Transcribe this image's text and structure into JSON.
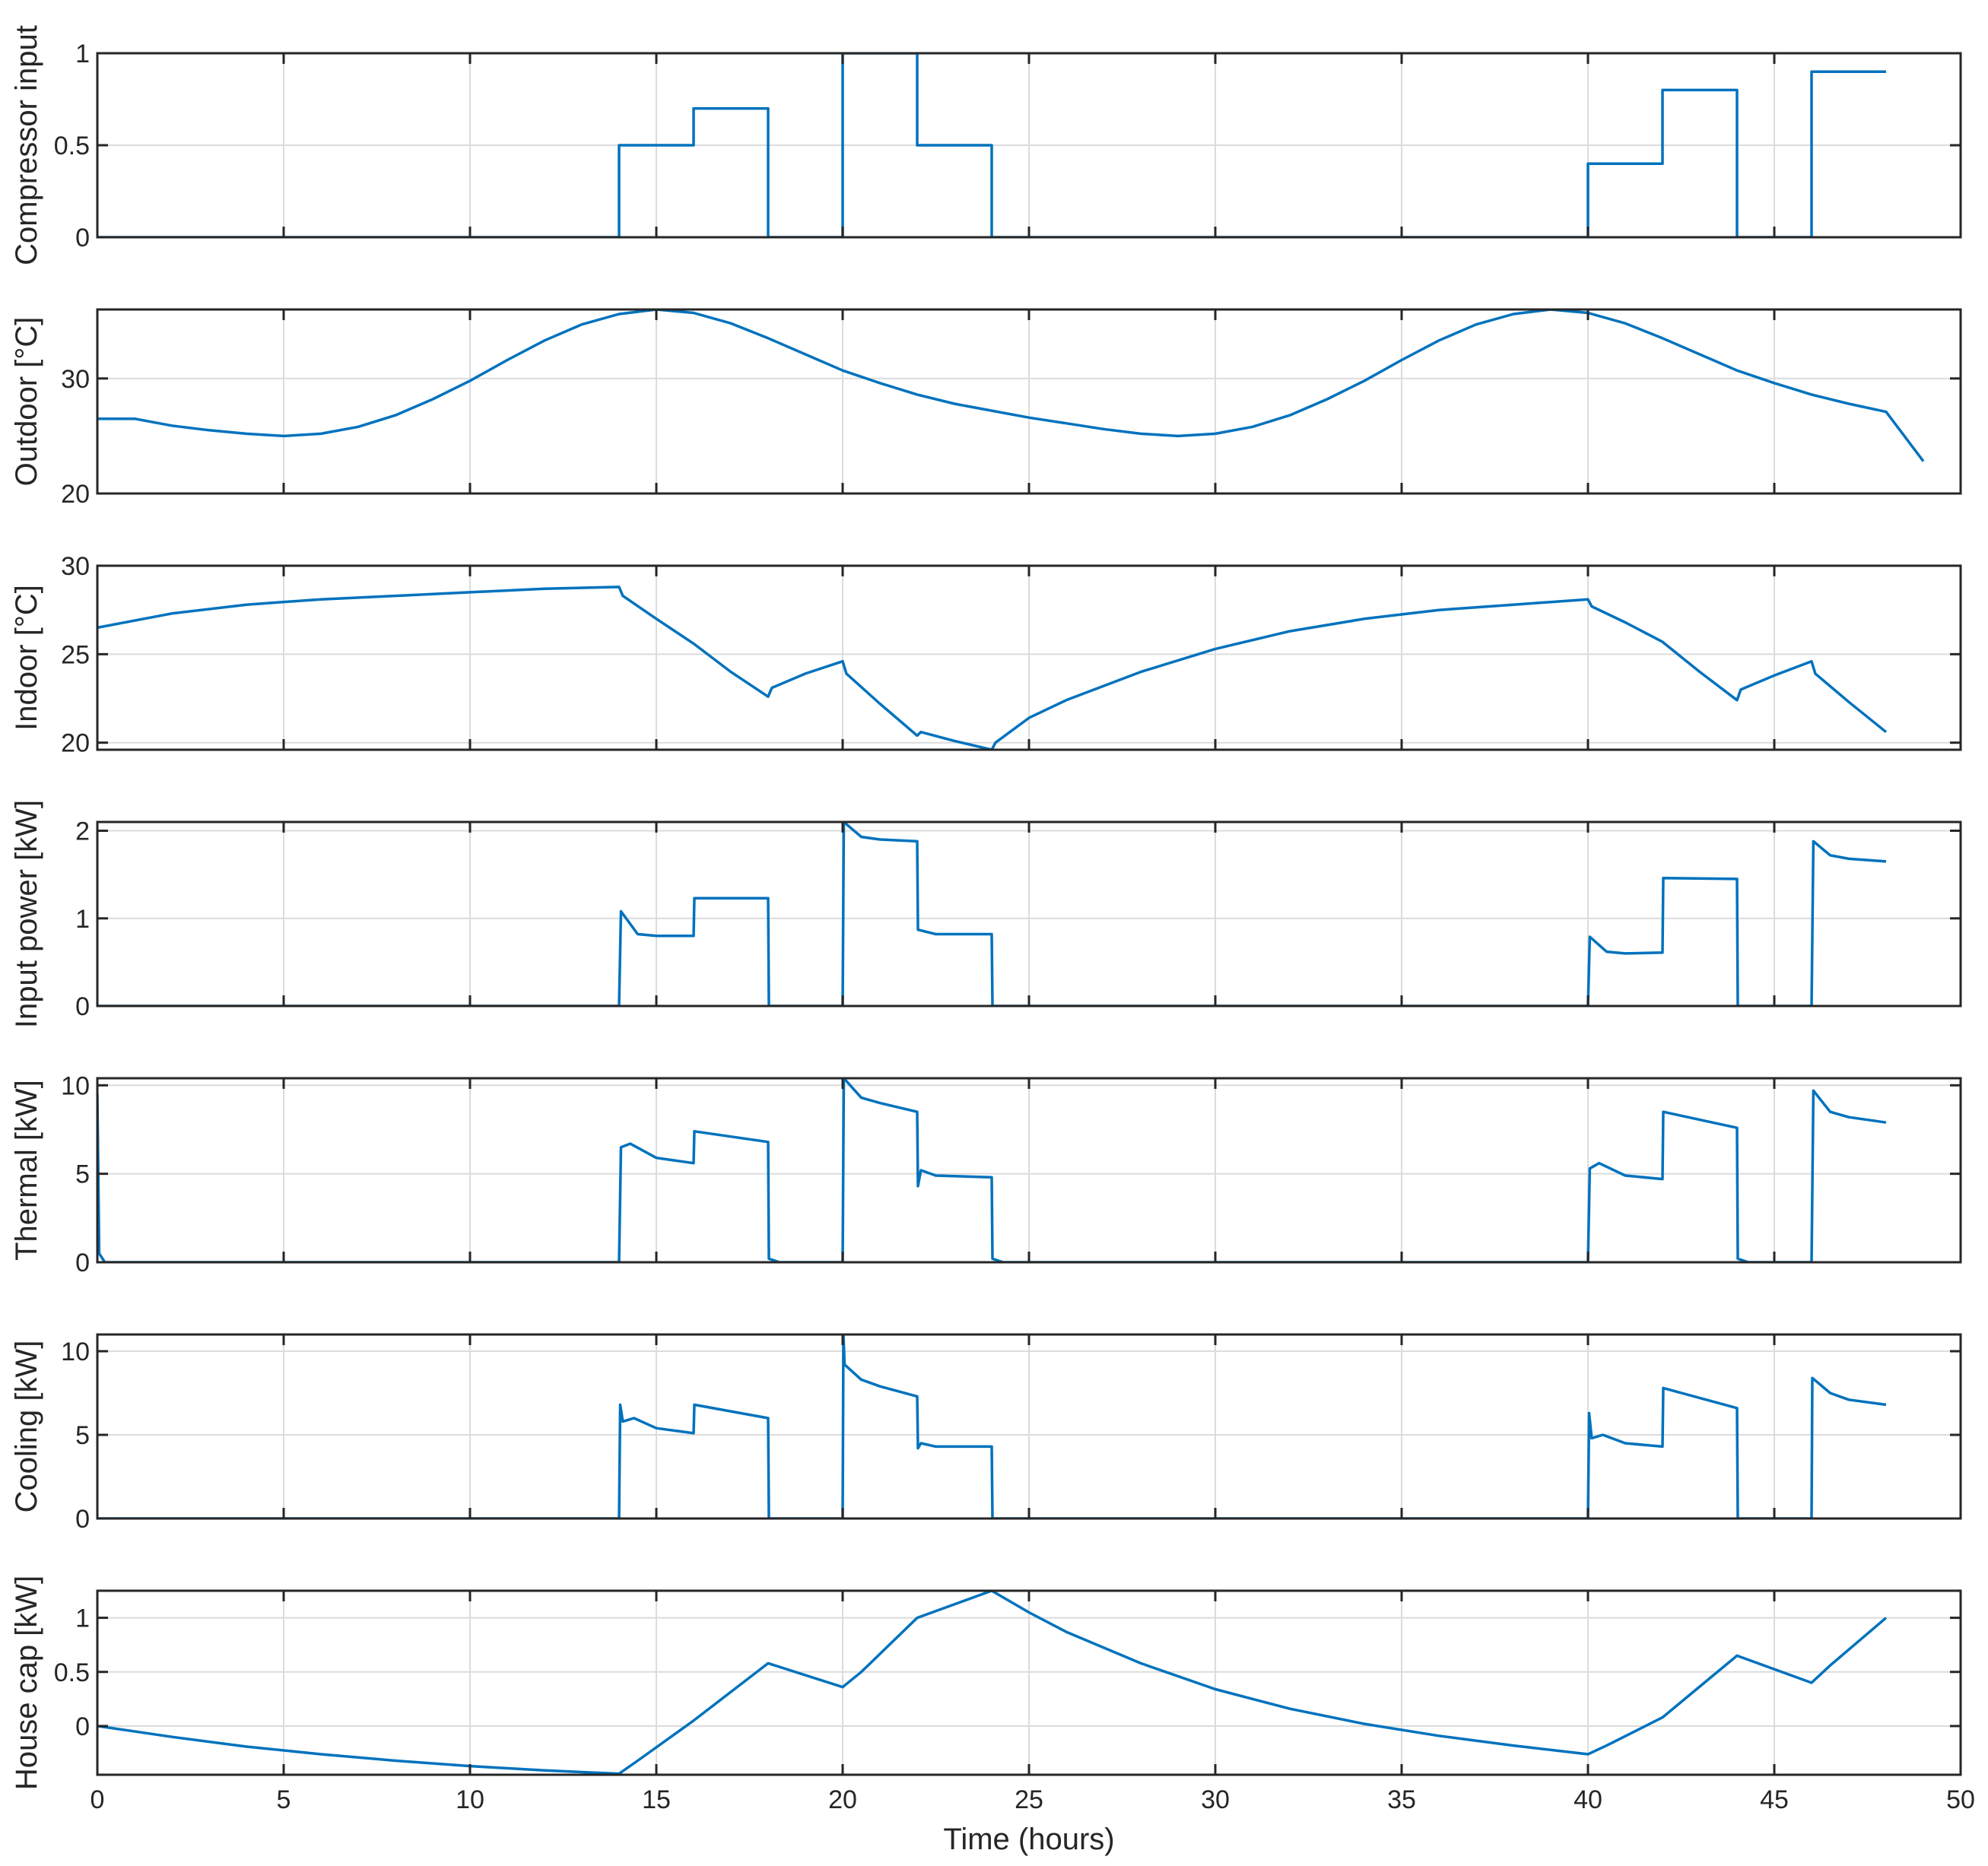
{
  "chart_data": {
    "type": "line",
    "shared_x": {
      "label": "Time (hours)",
      "lim": [
        0,
        50
      ],
      "ticks": [
        0,
        5,
        10,
        15,
        20,
        25,
        30,
        35,
        40,
        45,
        50
      ]
    },
    "grid": true,
    "color": "#0072BD",
    "panels": [
      {
        "ylabel": "Compressor input",
        "ylim": [
          0,
          1
        ],
        "yticks": [
          0,
          0.5,
          1
        ],
        "ytick_labels": [
          "0",
          "0.5",
          "1"
        ],
        "x": [
          0,
          14,
          14,
          16,
          16,
          18,
          18,
          20,
          20,
          22,
          22,
          24,
          24,
          40,
          40,
          42,
          42,
          44,
          44,
          46,
          46,
          48
        ],
        "y": [
          0,
          0,
          0.5,
          0.5,
          0.7,
          0.7,
          0,
          0,
          1,
          1,
          0.5,
          0.5,
          0,
          0,
          0.4,
          0.4,
          0.8,
          0.8,
          0,
          0,
          0.9,
          0.9
        ]
      },
      {
        "ylabel": "Outdoor [°C]",
        "ylim": [
          20,
          36
        ],
        "yticks": [
          20,
          30
        ],
        "ytick_labels": [
          "20",
          "30"
        ],
        "x": [
          0,
          1,
          2,
          3,
          4,
          5,
          6,
          7,
          8,
          9,
          10,
          11,
          12,
          13,
          14,
          15,
          16,
          17,
          18,
          19,
          20,
          21,
          22,
          23,
          24,
          25,
          26,
          27,
          28,
          29,
          30,
          31,
          32,
          33,
          34,
          35,
          36,
          37,
          38,
          39,
          40,
          41,
          42,
          43,
          44,
          45,
          46,
          47,
          48,
          49
        ],
        "y": [
          26.5,
          26.5,
          25.9,
          25.5,
          25.2,
          25.0,
          25.2,
          25.8,
          26.8,
          28.2,
          29.8,
          31.6,
          33.3,
          34.7,
          35.6,
          36.0,
          35.7,
          34.8,
          33.5,
          32.1,
          30.7,
          29.6,
          28.6,
          27.8,
          27.2,
          26.6,
          26.1,
          25.6,
          25.2,
          25.0,
          25.2,
          25.8,
          26.8,
          28.2,
          29.8,
          31.6,
          33.3,
          34.7,
          35.6,
          36.0,
          35.7,
          34.8,
          33.5,
          32.1,
          30.7,
          29.6,
          28.6,
          27.8,
          27.1,
          22.8
        ]
      },
      {
        "ylabel": "Indoor [°C]",
        "ylim": [
          19.6,
          30
        ],
        "yticks": [
          20,
          25,
          30
        ],
        "ytick_labels": [
          "20",
          "25",
          "30"
        ],
        "x": [
          0,
          2,
          4,
          6,
          8,
          10,
          12,
          14,
          14.1,
          15,
          16,
          17,
          18,
          18.1,
          19,
          20,
          20.1,
          21,
          22,
          22.1,
          23,
          24,
          24.1,
          25,
          26,
          28,
          30,
          32,
          34,
          36,
          38,
          40,
          40.1,
          41,
          42,
          43,
          44,
          44.1,
          45,
          46,
          46.1,
          47,
          48
        ],
        "y": [
          26.5,
          27.3,
          27.8,
          28.1,
          28.3,
          28.5,
          28.7,
          28.8,
          28.3,
          27.0,
          25.6,
          24.0,
          22.6,
          23.1,
          23.9,
          24.6,
          23.9,
          22.2,
          20.4,
          20.6,
          20.1,
          19.6,
          20.0,
          21.4,
          22.4,
          24.0,
          25.3,
          26.3,
          27.0,
          27.5,
          27.8,
          28.1,
          27.7,
          26.8,
          25.7,
          24.0,
          22.4,
          23.0,
          23.8,
          24.6,
          23.9,
          22.3,
          20.6
        ]
      },
      {
        "ylabel": "Input power [kW]",
        "ylim": [
          0,
          2.1
        ],
        "yticks": [
          0,
          1,
          2
        ],
        "ytick_labels": [
          "0",
          "1",
          "2"
        ],
        "x": [
          0,
          14,
          14.05,
          14.5,
          15,
          16,
          16.02,
          18,
          18.02,
          20,
          20.03,
          20.5,
          21,
          22,
          22.02,
          22.5,
          24,
          24.02,
          40,
          40.05,
          40.5,
          41,
          42,
          42.02,
          44,
          44.02,
          46,
          46.05,
          46.5,
          47,
          48
        ],
        "y": [
          0,
          0,
          1.08,
          0.82,
          0.8,
          0.8,
          1.23,
          1.23,
          0,
          0,
          2.1,
          1.93,
          1.9,
          1.88,
          0.87,
          0.82,
          0.82,
          0,
          0,
          0.79,
          0.62,
          0.6,
          0.61,
          1.46,
          1.45,
          0,
          0,
          1.88,
          1.72,
          1.68,
          1.65
        ]
      },
      {
        "ylabel": "Thermal [kW]",
        "ylim": [
          0,
          10.4
        ],
        "yticks": [
          0,
          5,
          10
        ],
        "ytick_labels": [
          "0",
          "5",
          "10"
        ],
        "x": [
          0,
          0.05,
          0.2,
          14,
          14.05,
          14.3,
          15,
          16,
          16.02,
          18,
          18.02,
          18.3,
          20,
          20.03,
          20.5,
          21,
          22,
          22.02,
          22.1,
          22.5,
          24,
          24.02,
          24.3,
          40,
          40.05,
          40.3,
          41,
          42,
          42.02,
          44,
          44.02,
          44.3,
          46,
          46.05,
          46.5,
          47,
          48
        ],
        "y": [
          9.5,
          0.5,
          0,
          0,
          6.5,
          6.7,
          5.9,
          5.6,
          7.4,
          6.8,
          0.2,
          0,
          0,
          10.4,
          9.3,
          9.0,
          8.5,
          4.3,
          5.2,
          4.9,
          4.8,
          0.2,
          0,
          0,
          5.3,
          5.6,
          4.9,
          4.7,
          8.5,
          7.6,
          0.2,
          0,
          0,
          9.7,
          8.5,
          8.2,
          7.9
        ]
      },
      {
        "ylabel": "Cooling [kW]",
        "ylim": [
          0,
          11
        ],
        "yticks": [
          0,
          5,
          10
        ],
        "ytick_labels": [
          "0",
          "5",
          "10"
        ],
        "x": [
          0,
          14,
          14.03,
          14.1,
          14.4,
          15,
          16,
          16.02,
          18,
          18.02,
          20,
          20.02,
          20.05,
          20.5,
          21,
          22,
          22.02,
          22.1,
          22.5,
          24,
          24.02,
          40,
          40.03,
          40.1,
          40.4,
          41,
          42,
          42.02,
          44,
          44.02,
          46,
          46.02,
          46.5,
          47,
          48
        ],
        "y": [
          0,
          0,
          6.8,
          5.8,
          6.0,
          5.4,
          5.1,
          6.8,
          6.0,
          0,
          0,
          11,
          9.2,
          8.3,
          7.9,
          7.3,
          4.2,
          4.5,
          4.3,
          4.3,
          0,
          0,
          6.3,
          4.8,
          5.0,
          4.5,
          4.3,
          7.8,
          6.6,
          0,
          0,
          8.4,
          7.5,
          7.1,
          6.8
        ]
      },
      {
        "ylabel": "House cap [kW]",
        "ylim": [
          -0.45,
          1.25
        ],
        "yticks": [
          0,
          0.5,
          1
        ],
        "ytick_labels": [
          "0",
          "0.5",
          "1"
        ],
        "x": [
          0,
          2,
          4,
          6,
          8,
          10,
          12,
          14,
          14.5,
          16,
          18,
          20,
          20.5,
          22,
          24,
          25,
          26,
          28,
          30,
          32,
          34,
          36,
          38,
          40,
          40.5,
          42,
          44,
          46,
          46.5,
          48
        ],
        "y": [
          0,
          -0.1,
          -0.19,
          -0.26,
          -0.32,
          -0.37,
          -0.41,
          -0.44,
          -0.32,
          0.05,
          0.58,
          0.36,
          0.5,
          1.0,
          1.25,
          1.05,
          0.87,
          0.58,
          0.34,
          0.16,
          0.02,
          -0.09,
          -0.18,
          -0.26,
          -0.18,
          0.08,
          0.65,
          0.4,
          0.56,
          1.0
        ]
      }
    ]
  }
}
